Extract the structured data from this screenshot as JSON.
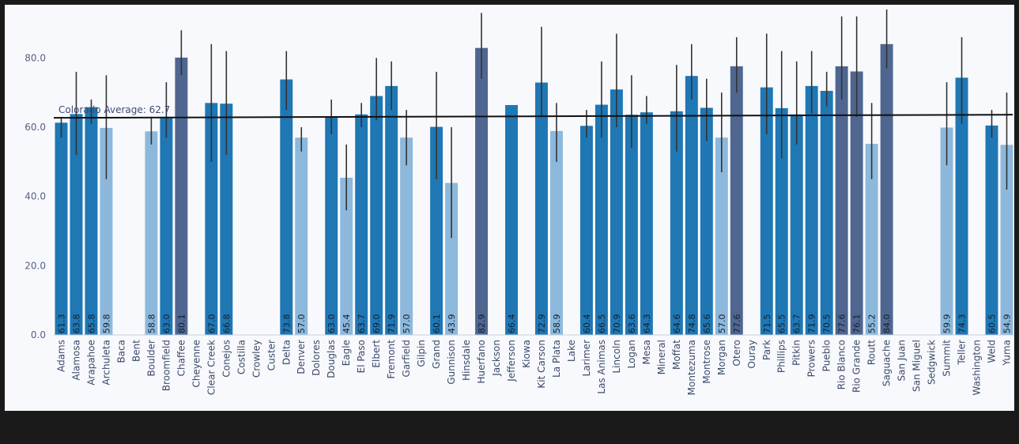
{
  "chart_data": {
    "type": "bar",
    "title": "",
    "xlabel": "",
    "ylabel": "",
    "ylim": [
      0,
      94
    ],
    "yticks": [
      "0.0",
      "20.0",
      "40.0",
      "60.0",
      "80.0"
    ],
    "ytick_values": [
      0,
      20,
      40,
      60,
      80
    ],
    "grid": false,
    "average": {
      "label": "Colorado Average: 62.7",
      "value": 62.7,
      "color": "#111111"
    },
    "colors": {
      "dark_blue": "#1f77b4",
      "light_blue": "#8cb8dc",
      "slate": "#4f6690",
      "error_bar": "#333333",
      "background": "#f8f9fc"
    },
    "categories": [
      "Adams",
      "Alamosa",
      "Arapahoe",
      "Archuleta",
      "Baca",
      "Bent",
      "Boulder",
      "Broomfield",
      "Chaffee",
      "Cheyenne",
      "Clear Creek",
      "Conejos",
      "Costilla",
      "Crowley",
      "Custer",
      "Delta",
      "Denver",
      "Dolores",
      "Douglas",
      "Eagle",
      "El Paso",
      "Elbert",
      "Fremont",
      "Garfield",
      "Gilpin",
      "Grand",
      "Gunnison",
      "Hinsdale",
      "Huerfano",
      "Jackson",
      "Jefferson",
      "Kiowa",
      "Kit Carson",
      "La Plata",
      "Lake",
      "Larimer",
      "Las Animas",
      "Lincoln",
      "Logan",
      "Mesa",
      "Mineral",
      "Moffat",
      "Montezuma",
      "Montrose",
      "Morgan",
      "Otero",
      "Ouray",
      "Park",
      "Phillips",
      "Pitkin",
      "Prowers",
      "Pueblo",
      "Rio Blanco",
      "Rio Grande",
      "Routt",
      "Saguache",
      "San Juan",
      "San Miguel",
      "Sedgwick",
      "Summit",
      "Teller",
      "Washington",
      "Weld",
      "Yuma"
    ],
    "values": [
      61.3,
      63.8,
      65.8,
      59.8,
      null,
      null,
      58.8,
      63.0,
      80.1,
      null,
      67.0,
      66.8,
      null,
      null,
      null,
      73.8,
      57.0,
      null,
      63.0,
      45.4,
      63.7,
      69.0,
      71.9,
      57.0,
      null,
      60.1,
      43.9,
      null,
      82.9,
      null,
      66.4,
      null,
      72.9,
      58.9,
      null,
      60.4,
      66.5,
      70.9,
      63.6,
      64.3,
      null,
      64.6,
      74.8,
      65.6,
      57.0,
      77.6,
      null,
      71.5,
      65.5,
      63.7,
      71.9,
      70.5,
      77.6,
      76.1,
      55.2,
      84.0,
      null,
      null,
      null,
      59.9,
      74.3,
      null,
      60.5,
      54.9
    ],
    "value_labels": [
      "61.3",
      "63.8",
      "65.8",
      "59.8",
      "",
      "",
      "58.8",
      "63.0",
      "80.1",
      "",
      "67.0",
      "66.8",
      "",
      "",
      "",
      "73.8",
      "57.0",
      "",
      "63.0",
      "45.4",
      "63.7",
      "69.0",
      "71.9",
      "57.0",
      "",
      "60.1",
      "43.9",
      "",
      "82.9",
      "",
      "66.4",
      "",
      "72.9",
      "58.9",
      "",
      "60.4",
      "66.5",
      "70.9",
      "63.6",
      "64.3",
      "",
      "64.6",
      "74.8",
      "65.6",
      "57.0",
      "77.6",
      "",
      "71.5",
      "65.5",
      "63.7",
      "71.9",
      "70.5",
      "77.6",
      "76.1",
      "55.2",
      "84.0",
      "",
      "",
      "",
      "59.9",
      "74.3",
      "",
      "60.5",
      "54.9"
    ],
    "error_low": [
      57,
      52,
      61,
      45,
      null,
      null,
      55,
      57,
      75,
      null,
      50,
      52,
      null,
      null,
      null,
      65,
      53,
      null,
      58,
      36,
      60,
      62,
      65,
      49,
      null,
      45,
      28,
      null,
      74,
      null,
      null,
      null,
      63,
      50,
      null,
      57,
      57,
      60,
      54,
      61,
      null,
      53,
      68,
      56,
      47,
      70,
      null,
      58,
      51,
      55,
      64,
      66,
      68,
      63,
      45,
      77,
      null,
      null,
      null,
      49,
      61,
      null,
      57,
      42
    ],
    "error_high": [
      63,
      76,
      68,
      75,
      null,
      null,
      63,
      73,
      88,
      null,
      84,
      82,
      null,
      null,
      null,
      82,
      60,
      null,
      68,
      55,
      67,
      80,
      79,
      65,
      null,
      76,
      60,
      null,
      93,
      null,
      null,
      null,
      89,
      67,
      null,
      65,
      79,
      87,
      75,
      69,
      null,
      78,
      84,
      74,
      70,
      86,
      null,
      87,
      82,
      79,
      82,
      76,
      92,
      92,
      67,
      94,
      null,
      null,
      null,
      73,
      86,
      null,
      65,
      70
    ],
    "shade": [
      "dark",
      "dark",
      "dark",
      "light",
      null,
      null,
      "light",
      "dark",
      "slate",
      null,
      "dark",
      "dark",
      null,
      null,
      null,
      "dark",
      "light",
      null,
      "dark",
      "light",
      "dark",
      "dark",
      "dark",
      "light",
      null,
      "dark",
      "light",
      null,
      "slate",
      null,
      "dark",
      null,
      "dark",
      "light",
      null,
      "dark",
      "dark",
      "dark",
      "dark",
      "dark",
      null,
      "dark",
      "dark",
      "dark",
      "light",
      "slate",
      null,
      "dark",
      "dark",
      "dark",
      "dark",
      "dark",
      "slate",
      "slate",
      "light",
      "slate",
      null,
      null,
      null,
      "light",
      "dark",
      null,
      "dark",
      "light"
    ]
  }
}
